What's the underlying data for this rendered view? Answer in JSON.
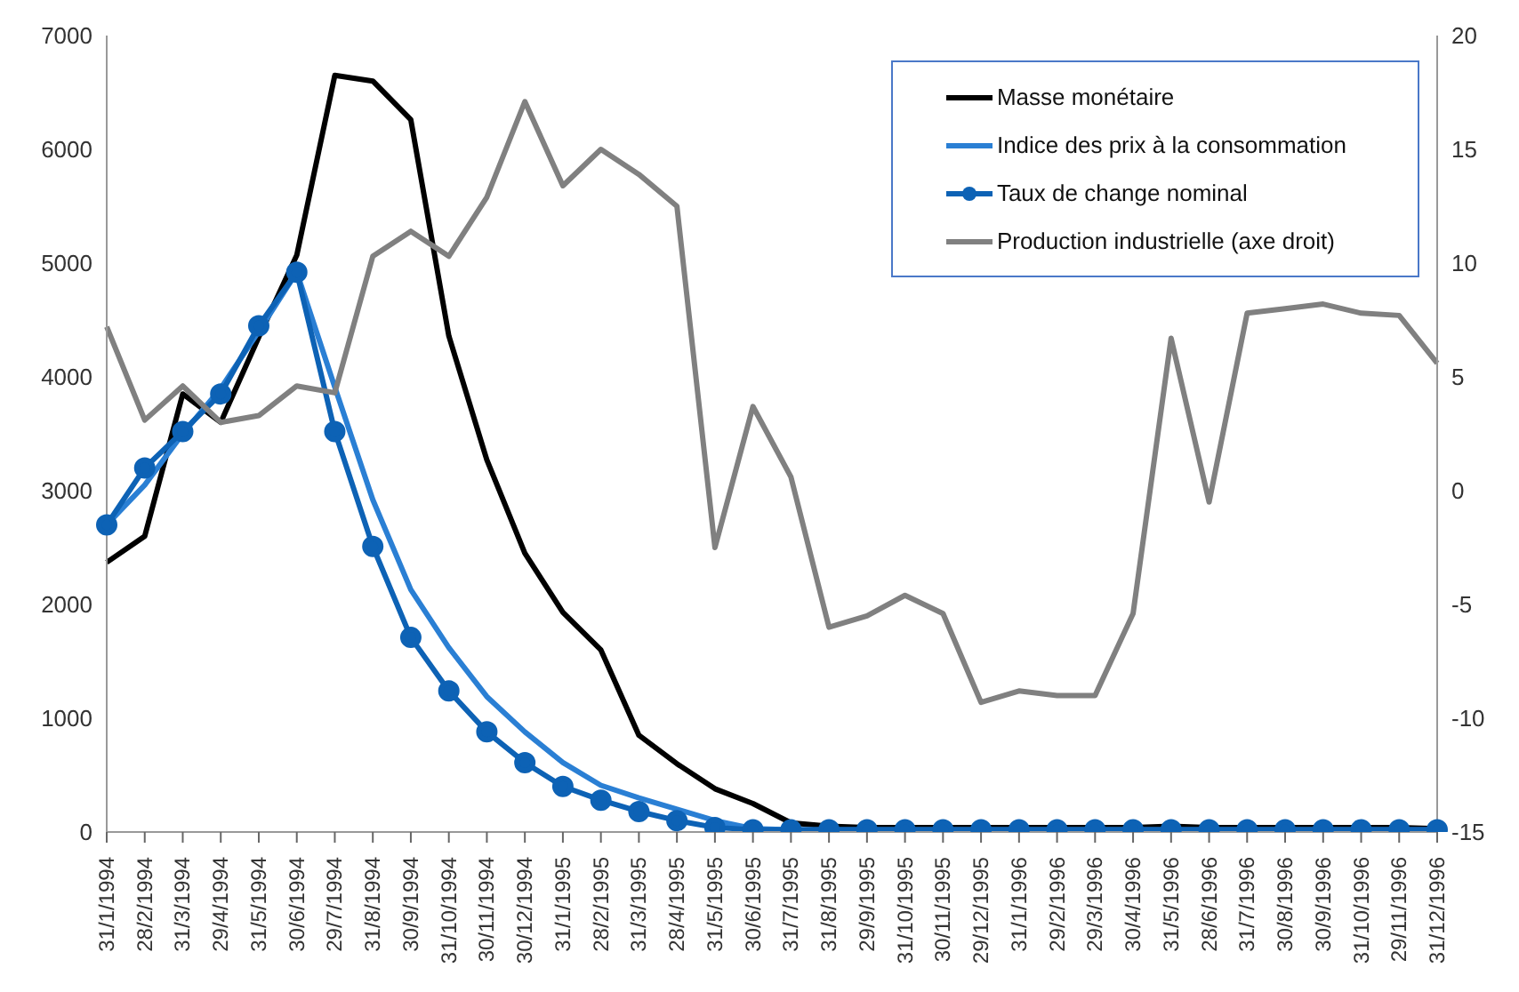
{
  "chart_data": {
    "type": "line",
    "categories": [
      "31/1/1994",
      "28/2/1994",
      "31/3/1994",
      "29/4/1994",
      "31/5/1994",
      "30/6/1994",
      "29/7/1994",
      "31/8/1994",
      "30/9/1994",
      "31/10/1994",
      "30/11/1994",
      "30/12/1994",
      "31/1/1995",
      "28/2/1995",
      "31/3/1995",
      "28/4/1995",
      "31/5/1995",
      "30/6/1995",
      "31/7/1995",
      "31/8/1995",
      "29/9/1995",
      "31/10/1995",
      "30/11/1995",
      "29/12/1995",
      "31/1/1996",
      "29/2/1996",
      "29/3/1996",
      "30/4/1996",
      "31/5/1996",
      "28/6/1996",
      "31/7/1996",
      "30/8/1996",
      "30/9/1996",
      "31/10/1996",
      "29/11/1996",
      "31/12/1996"
    ],
    "series": [
      {
        "name": "Masse monétaire",
        "color": "#000000",
        "marker": "none",
        "values": [
          2370,
          2600,
          3850,
          3600,
          4350,
          5070,
          6650,
          6600,
          6260,
          4360,
          3270,
          2450,
          1930,
          1600,
          850,
          600,
          380,
          250,
          80,
          50,
          40,
          40,
          40,
          40,
          40,
          40,
          40,
          40,
          50,
          40,
          40,
          40,
          40,
          40,
          40,
          30
        ]
      },
      {
        "name": "Indice des prix à la consommation",
        "color": "#2a7fd4",
        "marker": "none",
        "values": [
          2700,
          3050,
          3500,
          3900,
          4400,
          4920,
          3910,
          2920,
          2130,
          1620,
          1190,
          880,
          610,
          410,
          300,
          200,
          100,
          30,
          20,
          20,
          20,
          20,
          20,
          20,
          20,
          20,
          20,
          20,
          20,
          20,
          20,
          20,
          20,
          20,
          20,
          20
        ]
      },
      {
        "name": "Taux de change nominal",
        "color": "#0d62b5",
        "marker": "circle",
        "values": [
          2700,
          3200,
          3520,
          3850,
          4450,
          4920,
          3520,
          2510,
          1710,
          1240,
          880,
          610,
          400,
          280,
          180,
          100,
          40,
          20,
          20,
          20,
          20,
          20,
          20,
          20,
          20,
          20,
          20,
          20,
          20,
          20,
          20,
          20,
          20,
          20,
          20,
          20
        ]
      },
      {
        "name": "Production industrielle (axe droit)",
        "color": "#808080",
        "marker": "none",
        "axis": "y2",
        "values": [
          7.2,
          3.1,
          4.6,
          3.0,
          3.3,
          4.6,
          4.3,
          10.3,
          11.4,
          10.3,
          12.9,
          17.1,
          13.4,
          15.0,
          13.9,
          12.5,
          -2.5,
          3.7,
          0.6,
          -6.0,
          -5.5,
          -4.6,
          -5.4,
          -9.3,
          -8.8,
          -9.0,
          -9.0,
          -5.4,
          6.7,
          -0.5,
          7.8,
          8.0,
          8.2,
          7.8,
          7.7,
          5.6
        ]
      }
    ],
    "ylim": [
      0,
      7000
    ],
    "yticks": [
      0,
      1000,
      2000,
      3000,
      4000,
      5000,
      6000,
      7000
    ],
    "y2lim": [
      -15,
      20
    ],
    "y2ticks": [
      -15,
      -10,
      -5,
      0,
      5,
      10,
      15,
      20
    ],
    "grid": false,
    "legend": "top right",
    "line_style": "solid"
  }
}
